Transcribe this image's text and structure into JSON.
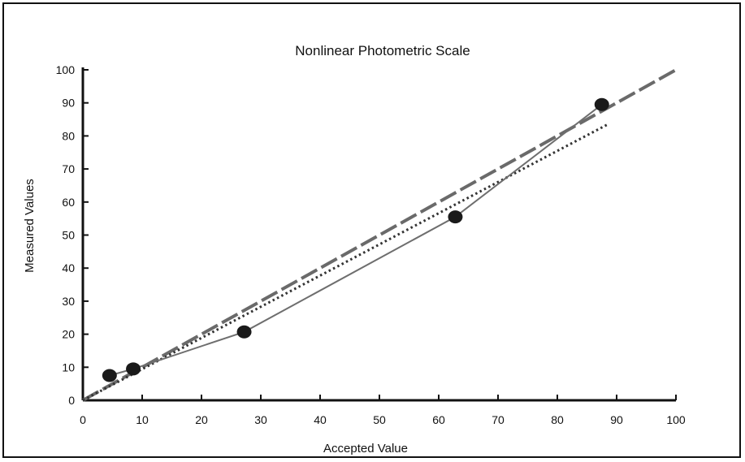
{
  "chart_data": {
    "type": "scatter",
    "title": "Nonlinear Photometric Scale",
    "xlabel": "Accepted Value",
    "ylabel": "Measured Values",
    "xlim": [
      0,
      100
    ],
    "ylim": [
      0,
      100
    ],
    "xticks": [
      0,
      10,
      20,
      30,
      40,
      50,
      60,
      70,
      80,
      90,
      100
    ],
    "yticks": [
      0,
      10,
      20,
      30,
      40,
      50,
      60,
      70,
      80,
      90,
      100
    ],
    "grid": false,
    "series": [
      {
        "style": "solid line with markers",
        "color": "#6e6e6e",
        "marker_color": "#1a1a1a",
        "x": [
          4.5,
          8.5,
          27.2,
          62.8,
          87.5
        ],
        "y": [
          7.5,
          9.5,
          20.7,
          55.5,
          89.5
        ]
      },
      {
        "style": "dashed line",
        "color": "#6a6a6a",
        "x": [
          0,
          100
        ],
        "y": [
          0,
          100
        ]
      },
      {
        "style": "dotted line",
        "color": "#333333",
        "x": [
          0,
          88.5
        ],
        "y": [
          0,
          83.5
        ]
      }
    ]
  }
}
